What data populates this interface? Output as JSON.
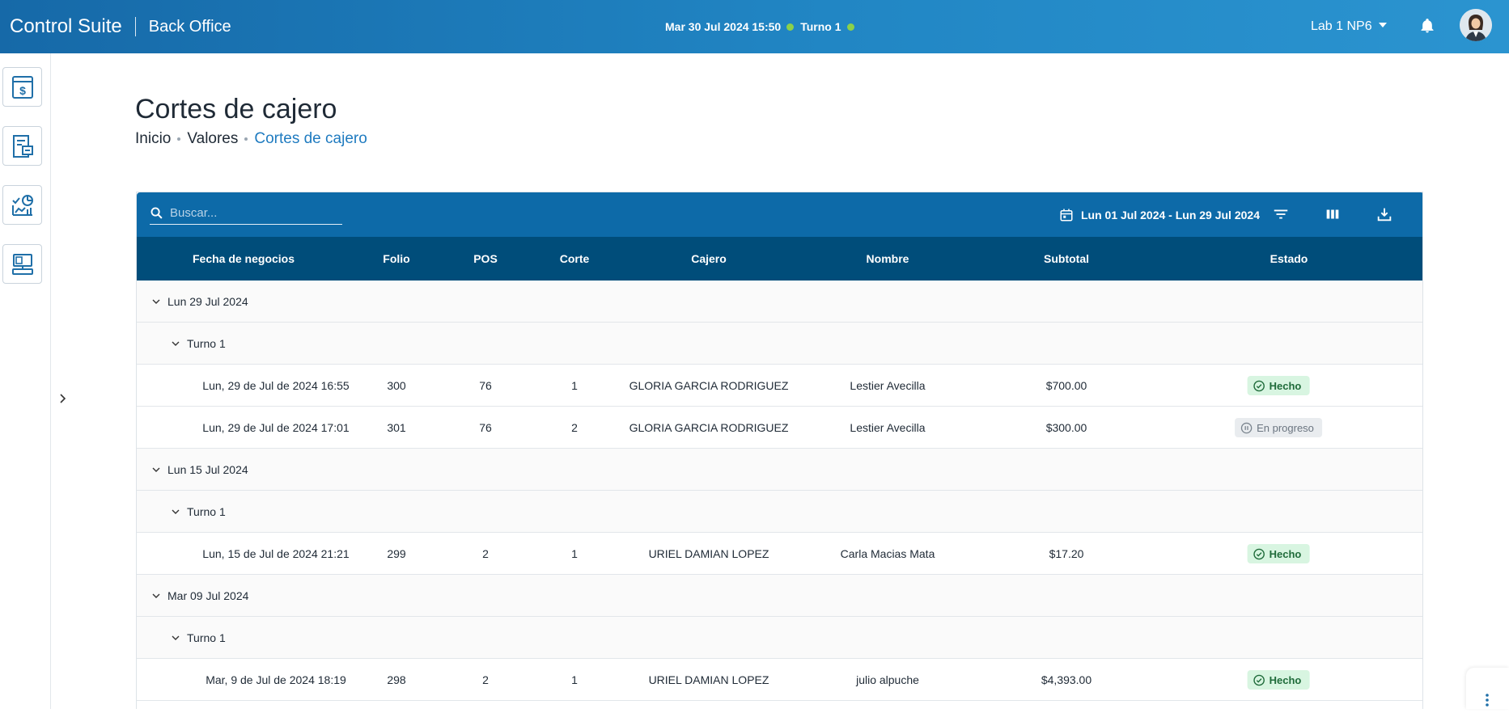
{
  "header": {
    "brand": "Control Suite",
    "section": "Back Office",
    "datetime": "Mar 30 Jul 2024 15:50",
    "shift": "Turno 1",
    "location": "Lab 1 NP6",
    "status_color": "#8bd14a"
  },
  "sidebar": {
    "items": [
      {
        "icon": "cash-register-icon"
      },
      {
        "icon": "report-icon"
      },
      {
        "icon": "analytics-icon"
      },
      {
        "icon": "pos-terminal-icon"
      }
    ]
  },
  "page": {
    "title": "Cortes de cajero",
    "breadcrumb": [
      "Inicio",
      "Valores",
      "Cortes de cajero"
    ]
  },
  "toolbar": {
    "search_placeholder": "Buscar...",
    "date_range": "Lun 01 Jul 2024 - Lun 29 Jul 2024"
  },
  "table": {
    "columns": [
      "Fecha de negocios",
      "Folio",
      "POS",
      "Corte",
      "Cajero",
      "Nombre",
      "Subtotal",
      "Estado"
    ],
    "groups": [
      {
        "date": "Lun 29 Jul 2024",
        "shift": "Turno 1",
        "rows": [
          {
            "fecha": "Lun, 29 de Jul de 2024 16:55",
            "folio": "300",
            "pos": "76",
            "corte": "1",
            "cajero": "GLORIA GARCIA RODRIGUEZ",
            "nombre": "Lestier Avecilla",
            "subtotal": "$700.00",
            "estado": "Hecho",
            "estado_type": "done"
          },
          {
            "fecha": "Lun, 29 de Jul de 2024 17:01",
            "folio": "301",
            "pos": "76",
            "corte": "2",
            "cajero": "GLORIA GARCIA RODRIGUEZ",
            "nombre": "Lestier Avecilla",
            "subtotal": "$300.00",
            "estado": "En progreso",
            "estado_type": "progress"
          }
        ]
      },
      {
        "date": "Lun 15 Jul 2024",
        "shift": "Turno 1",
        "rows": [
          {
            "fecha": "Lun, 15 de Jul de 2024 21:21",
            "folio": "299",
            "pos": "2",
            "corte": "1",
            "cajero": "URIEL DAMIAN LOPEZ",
            "nombre": "Carla Macias Mata",
            "subtotal": "$17.20",
            "estado": "Hecho",
            "estado_type": "done"
          }
        ]
      },
      {
        "date": "Mar 09 Jul 2024",
        "shift": "Turno 1",
        "rows": [
          {
            "fecha": "Mar, 9 de Jul de 2024 18:19",
            "folio": "298",
            "pos": "2",
            "corte": "1",
            "cajero": "URIEL DAMIAN LOPEZ",
            "nombre": "julio alpuche",
            "subtotal": "$4,393.00",
            "estado": "Hecho",
            "estado_type": "done"
          }
        ]
      }
    ]
  }
}
